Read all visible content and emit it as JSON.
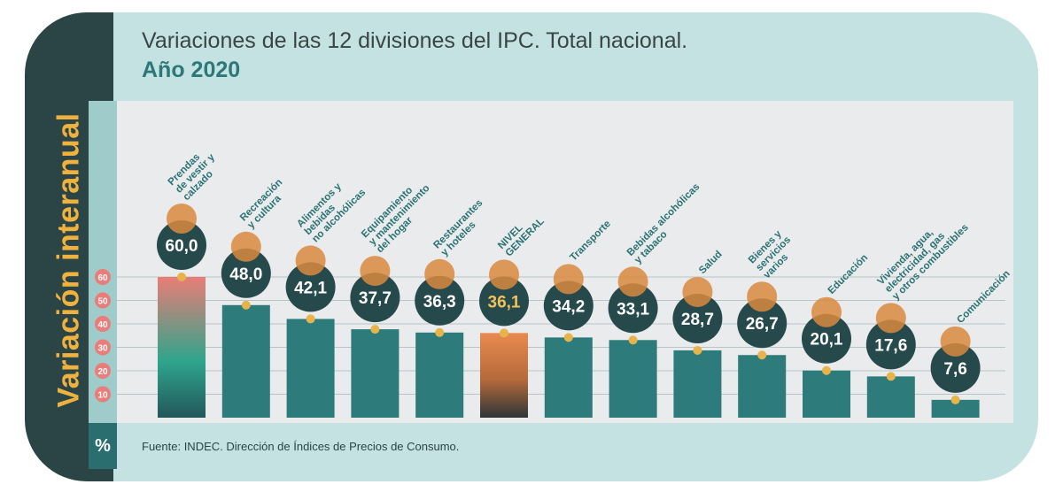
{
  "header": {
    "title_line1": "Variaciones de las 12 divisiones del IPC. Total nacional.",
    "title_line2": "Año 2020"
  },
  "side_label": "Variación interanual",
  "unit_label": "%",
  "source": "Fuente: INDEC. Dirección de Índices de Precios de Consumo.",
  "colors": {
    "bar": "#2d7b7a",
    "bubble": "#26494b",
    "dot": "#e7b44c",
    "tick_circle": "#ea7c79",
    "category_text": "#2b7273",
    "highlight_value": "#f2c15a"
  },
  "chart_data": {
    "type": "bar",
    "title": "Variaciones de las 12 divisiones del IPC. Total nacional. Año 2020",
    "ylabel": "Variación interanual",
    "unit": "%",
    "ylim": [
      0,
      65
    ],
    "yticks": [
      10,
      20,
      30,
      40,
      50,
      60
    ],
    "grid": true,
    "categories": [
      "Prendas de vestir y calzado",
      "Recreación y cultura",
      "Alimentos y bebidas no alcohólicas",
      "Equipamiento y mantenimiento del hogar",
      "Restaurantes y hoteles",
      "NIVEL GENERAL",
      "Transporte",
      "Bebidas alcohólicas y tabaco",
      "Salud",
      "Bienes y servicios varios",
      "Educación",
      "Vivienda, agua, electricidad, gas y otros combustibles",
      "Comunicación"
    ],
    "category_lines": [
      [
        "Prendas",
        "de vestir y",
        "calzado"
      ],
      [
        "Recreación",
        "y cultura"
      ],
      [
        "Alimentos y",
        "bebidas",
        "no alcohólicas"
      ],
      [
        "Equipamiento",
        "y mantenimiento",
        "del hogar"
      ],
      [
        "Restaurantes",
        "y hoteles"
      ],
      [
        "NIVEL",
        "GENERAL"
      ],
      [
        "Transporte"
      ],
      [
        "Bebidas alcohólicas",
        "y tabaco"
      ],
      [
        "Salud"
      ],
      [
        "Bienes y",
        "servicios",
        "varios"
      ],
      [
        "Educación"
      ],
      [
        "Vivienda, agua,",
        "electricidad, gas",
        "y otros combustibles"
      ],
      [
        "Comunicación"
      ]
    ],
    "values": [
      60.0,
      48.0,
      42.1,
      37.7,
      36.3,
      36.1,
      34.2,
      33.1,
      28.7,
      26.7,
      20.1,
      17.6,
      7.6
    ],
    "value_labels": [
      "60,0",
      "48,0",
      "42,1",
      "37,7",
      "36,3",
      "36,1",
      "34,2",
      "33,1",
      "28,7",
      "26,7",
      "20,1",
      "17,6",
      "7,6"
    ],
    "icons": [
      "shirt-icon",
      "sun-beach-icon",
      "roast-chicken-icon",
      "washing-machine-icon",
      "cutlery-icon",
      "shopping-basket-icon",
      "bus-icon",
      "bottle-icon",
      "first-aid-icon",
      "comb-scissors-icon",
      "book-icon",
      "faucet-bulb-icon",
      "phone-icon"
    ],
    "highlight": {
      "Prendas de vestir y calzado": "max",
      "NIVEL GENERAL": "general"
    }
  }
}
